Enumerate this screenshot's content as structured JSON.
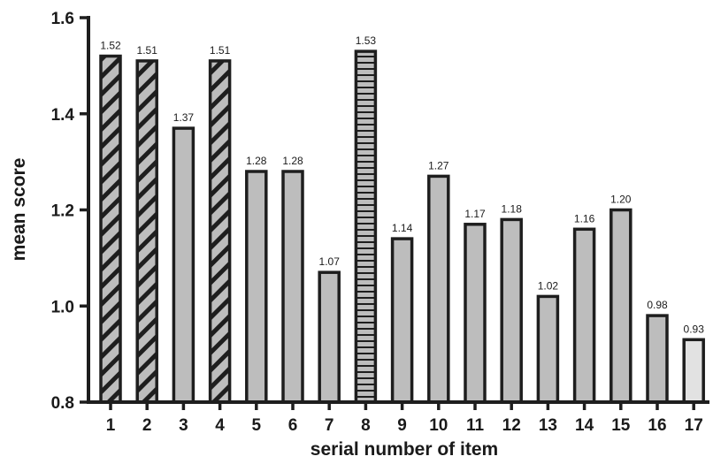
{
  "chart_data": {
    "type": "bar",
    "title": "",
    "xlabel": "serial number of item",
    "ylabel": "mean score",
    "ylim": [
      0.8,
      1.6
    ],
    "yticks": [
      "0.8",
      "1.0",
      "1.2",
      "1.4",
      "1.6"
    ],
    "categories": [
      "1",
      "2",
      "3",
      "4",
      "5",
      "6",
      "7",
      "8",
      "9",
      "10",
      "11",
      "12",
      "13",
      "14",
      "15",
      "16",
      "17"
    ],
    "values": [
      1.52,
      1.51,
      1.37,
      1.51,
      1.28,
      1.28,
      1.07,
      1.53,
      1.14,
      1.27,
      1.17,
      1.18,
      1.02,
      1.16,
      1.2,
      0.98,
      0.93
    ],
    "value_labels": [
      "1.52",
      "1.51",
      "1.37",
      "1.51",
      "1.28",
      "1.28",
      "1.07",
      "1.53",
      "1.14",
      "1.27",
      "1.17",
      "1.18",
      "1.02",
      "1.16",
      "1.20",
      "0.98",
      "0.93"
    ],
    "bar_patterns": [
      "diagonal",
      "diagonal",
      "solid",
      "diagonal",
      "solid",
      "solid",
      "solid",
      "horizontal",
      "solid",
      "solid",
      "solid",
      "solid",
      "solid",
      "solid",
      "solid",
      "solid",
      "light"
    ],
    "grid": false,
    "legend": "none",
    "colors": {
      "bar_fill": "#bdbdbd",
      "bar_fill_light": "#e2e2e2",
      "bar_stroke": "#1e1e1e",
      "axis": "#1e1e1e",
      "text": "#1a1a1a"
    }
  }
}
